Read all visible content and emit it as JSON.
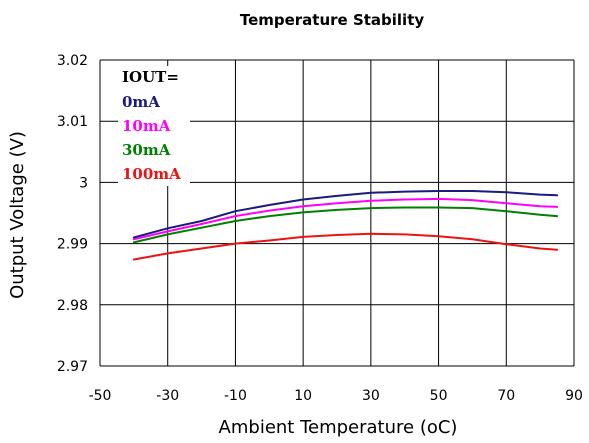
{
  "chart_data": {
    "type": "line",
    "title": "Temperature Stability",
    "xlabel": "Ambient Temperature (oC)",
    "ylabel": "Output Voltage (V)",
    "xlim": [
      -50,
      90
    ],
    "ylim": [
      2.97,
      3.02
    ],
    "x_ticks": [
      "-50",
      "-30",
      "-10",
      "10",
      "30",
      "50",
      "70",
      "90"
    ],
    "y_ticks": [
      "2.97",
      "2.98",
      "2.99",
      "3",
      "3.01",
      "3.02"
    ],
    "grid": true,
    "legend_title": "IOUT=",
    "legend_placement": "top-left",
    "x": [
      -40,
      -30,
      -20,
      -10,
      0,
      10,
      20,
      30,
      40,
      50,
      60,
      70,
      80,
      85
    ],
    "series": [
      {
        "name": "0mA",
        "color": "#1a1a80",
        "values": [
          2.991,
          2.9925,
          2.9937,
          2.9953,
          2.9963,
          2.9972,
          2.9978,
          2.9983,
          2.9985,
          2.9986,
          2.9986,
          2.9984,
          2.998,
          2.9979
        ]
      },
      {
        "name": "10mA",
        "color": "#ff00ff",
        "values": [
          2.9907,
          2.992,
          2.9932,
          2.9945,
          2.9954,
          2.9961,
          2.9966,
          2.997,
          2.9972,
          2.9973,
          2.9971,
          2.9966,
          2.9961,
          2.996
        ]
      },
      {
        "name": "30mA",
        "color": "#008000",
        "values": [
          2.9902,
          2.9915,
          2.9926,
          2.9937,
          2.9945,
          2.9951,
          2.9955,
          2.9958,
          2.9959,
          2.9959,
          2.9958,
          2.9953,
          2.9947,
          2.9945
        ]
      },
      {
        "name": "100mA",
        "color": "#ee1111",
        "values": [
          2.9874,
          2.9884,
          2.9892,
          2.99,
          2.9905,
          2.9911,
          2.9914,
          2.9916,
          2.9915,
          2.9912,
          2.9907,
          2.9899,
          2.9892,
          2.989
        ]
      }
    ]
  }
}
